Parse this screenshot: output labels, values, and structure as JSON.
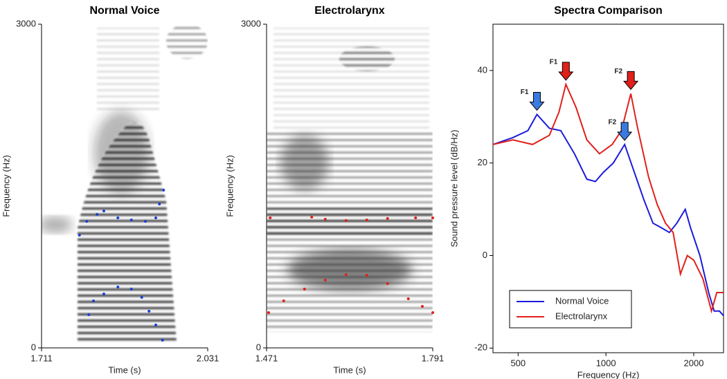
{
  "chart_data": [
    {
      "type": "spectrogram",
      "title": "Normal Voice",
      "x_label": "Time (s)",
      "y_label": "Frequency (Hz)",
      "xlim": [
        1.711,
        2.031
      ],
      "xticks": [
        1.711,
        2.031
      ],
      "ylim": [
        0,
        3000
      ],
      "yticks": [
        0,
        3000
      ],
      "series": [
        {
          "color": "#1a3fd6",
          "x": [
            1.784,
            1.798,
            1.818,
            1.831,
            1.858,
            1.884,
            1.911,
            1.931,
            1.938,
            1.946
          ],
          "values": [
            1045,
            1173,
            1237,
            1269,
            1205,
            1186,
            1173,
            1205,
            1333,
            1462
          ]
        },
        {
          "color": "#1a3fd6",
          "x": [
            1.802,
            1.811,
            1.831,
            1.858,
            1.884,
            1.904,
            1.918,
            1.931,
            1.944
          ],
          "values": [
            308,
            436,
            500,
            564,
            545,
            468,
            340,
            212,
            71
          ]
        }
      ]
    },
    {
      "type": "spectrogram",
      "title": "Electrolarynx",
      "x_label": "Time (s)",
      "y_label": "Frequency (Hz)",
      "xlim": [
        1.471,
        1.791
      ],
      "xticks": [
        1.471,
        1.791
      ],
      "ylim": [
        0,
        3000
      ],
      "yticks": [
        0,
        3000
      ],
      "series": [
        {
          "color": "#e0201b",
          "x": [
            1.478,
            1.558,
            1.584,
            1.624,
            1.664,
            1.704,
            1.758,
            1.791
          ],
          "values": [
            1205,
            1212,
            1192,
            1180,
            1186,
            1199,
            1205,
            1205
          ]
        },
        {
          "color": "#e0201b",
          "x": [
            1.475,
            1.504,
            1.544,
            1.584,
            1.624,
            1.664,
            1.704,
            1.744,
            1.771,
            1.791
          ],
          "values": [
            327,
            436,
            545,
            628,
            679,
            673,
            596,
            455,
            385,
            327
          ]
        }
      ]
    },
    {
      "type": "line",
      "title": "Spectra Comparison",
      "x_label": "Frequency (Hz)",
      "y_label": "Sound pressure level (dB/Hz)",
      "xscale": "log",
      "xlim": [
        410,
        2530
      ],
      "xticks": [
        500,
        1000,
        2000
      ],
      "ylim": [
        -21,
        50
      ],
      "yticks": [
        -20,
        0,
        20,
        40
      ],
      "legend": "lower left",
      "series": [
        {
          "name": "Normal Voice",
          "color": "#1a1adc",
          "x": [
            410,
            480,
            540,
            580,
            640,
            700,
            780,
            860,
            920,
            980,
            1060,
            1159,
            1220,
            1350,
            1450,
            1550,
            1650,
            1750,
            1870,
            1950,
            2100,
            2250,
            2350,
            2450,
            2530
          ],
          "values": [
            24,
            25.5,
            27,
            30.5,
            27.5,
            27,
            22,
            16.5,
            16,
            18,
            20,
            24,
            20,
            12,
            7,
            6,
            5,
            7,
            10,
            6,
            0,
            -8,
            -12,
            -12,
            -13
          ]
        },
        {
          "name": "Electrolarynx",
          "color": "#e0201b",
          "x": [
            410,
            480,
            560,
            640,
            690,
            729,
            790,
            860,
            950,
            1050,
            1130,
            1217,
            1280,
            1400,
            1500,
            1600,
            1700,
            1800,
            1900,
            2000,
            2150,
            2300,
            2400,
            2530
          ],
          "values": [
            24,
            25,
            24,
            26,
            31,
            37,
            32,
            25,
            22,
            24,
            27,
            35,
            28,
            17,
            11,
            7,
            5,
            -4,
            0,
            -1,
            -5,
            -12,
            -8,
            -8
          ]
        }
      ],
      "annotations": [
        {
          "text": "F1",
          "x": 580,
          "y": 30.5,
          "color": "#3a7be0"
        },
        {
          "text": "F1",
          "x": 729,
          "y": 37,
          "color": "#e0201b"
        },
        {
          "text": "F2",
          "x": 1217,
          "y": 35,
          "color": "#e0201b"
        },
        {
          "text": "F2",
          "x": 1159,
          "y": 24,
          "color": "#3a7be0"
        }
      ]
    }
  ]
}
